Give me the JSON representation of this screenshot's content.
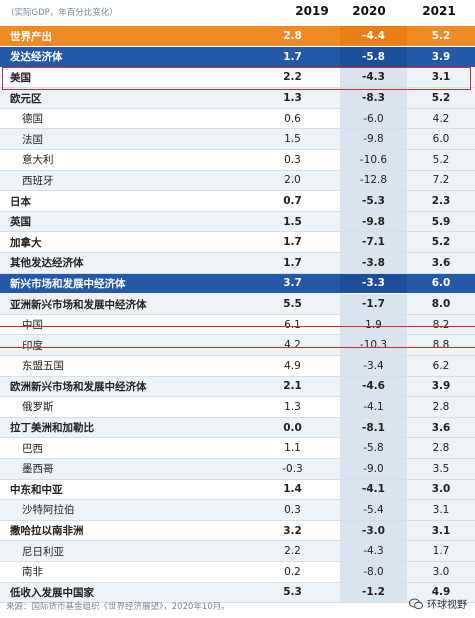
{
  "header": {
    "unit": "（实际GDP，年百分比变化）",
    "years": [
      "2019",
      "2020",
      "2021"
    ]
  },
  "rows": [
    {
      "label": "世界产出",
      "v": [
        "2.8",
        "-4.4",
        "5.2"
      ],
      "style": "world"
    },
    {
      "label": "发达经济体",
      "v": [
        "1.7",
        "-5.8",
        "3.9"
      ],
      "style": "adv"
    },
    {
      "label": "美国",
      "v": [
        "2.2",
        "-4.3",
        "3.1"
      ],
      "style": "top"
    },
    {
      "label": "欧元区",
      "v": [
        "1.3",
        "-8.3",
        "5.2"
      ],
      "style": "top"
    },
    {
      "label": "德国",
      "v": [
        "0.6",
        "-6.0",
        "4.2"
      ],
      "style": "sub"
    },
    {
      "label": "法国",
      "v": [
        "1.5",
        "-9.8",
        "6.0"
      ],
      "style": "sub"
    },
    {
      "label": "意大利",
      "v": [
        "0.3",
        "-10.6",
        "5.2"
      ],
      "style": "sub"
    },
    {
      "label": "西班牙",
      "v": [
        "2.0",
        "-12.8",
        "7.2"
      ],
      "style": "sub"
    },
    {
      "label": "日本",
      "v": [
        "0.7",
        "-5.3",
        "2.3"
      ],
      "style": "top"
    },
    {
      "label": "英国",
      "v": [
        "1.5",
        "-9.8",
        "5.9"
      ],
      "style": "top"
    },
    {
      "label": "加拿大",
      "v": [
        "1.7",
        "-7.1",
        "5.2"
      ],
      "style": "top"
    },
    {
      "label": "其他发达经济体",
      "v": [
        "1.7",
        "-3.8",
        "3.6"
      ],
      "style": "top"
    },
    {
      "label": "新兴市场和发展中经济体",
      "v": [
        "3.7",
        "-3.3",
        "6.0"
      ],
      "style": "adv"
    },
    {
      "label": "亚洲新兴市场和发展中经济体",
      "v": [
        "5.5",
        "-1.7",
        "8.0"
      ],
      "style": "top"
    },
    {
      "label": "中国",
      "v": [
        "6.1",
        "1.9",
        "8.2"
      ],
      "style": "sub"
    },
    {
      "label": "印度",
      "v": [
        "4.2",
        "-10.3",
        "8.8"
      ],
      "style": "sub"
    },
    {
      "label": "东盟五国",
      "v": [
        "4.9",
        "-3.4",
        "6.2"
      ],
      "style": "sub"
    },
    {
      "label": "欧洲新兴市场和发展中经济体",
      "v": [
        "2.1",
        "-4.6",
        "3.9"
      ],
      "style": "top"
    },
    {
      "label": "俄罗斯",
      "v": [
        "1.3",
        "-4.1",
        "2.8"
      ],
      "style": "sub"
    },
    {
      "label": "拉丁美洲和加勒比",
      "v": [
        "0.0",
        "-8.1",
        "3.6"
      ],
      "style": "top"
    },
    {
      "label": "巴西",
      "v": [
        "1.1",
        "-5.8",
        "2.8"
      ],
      "style": "sub"
    },
    {
      "label": "墨西哥",
      "v": [
        "-0.3",
        "-9.0",
        "3.5"
      ],
      "style": "sub"
    },
    {
      "label": "中东和中亚",
      "v": [
        "1.4",
        "-4.1",
        "3.0"
      ],
      "style": "top"
    },
    {
      "label": "沙特阿拉伯",
      "v": [
        "0.3",
        "-5.4",
        "3.1"
      ],
      "style": "sub"
    },
    {
      "label": "撒哈拉以南非洲",
      "v": [
        "3.2",
        "-3.0",
        "3.1"
      ],
      "style": "top"
    },
    {
      "label": "尼日利亚",
      "v": [
        "2.2",
        "-4.3",
        "1.7"
      ],
      "style": "sub"
    },
    {
      "label": "南非",
      "v": [
        "0.2",
        "-8.0",
        "3.0"
      ],
      "style": "sub"
    },
    {
      "label": "低收入发展中国家",
      "v": [
        "5.3",
        "-1.2",
        "4.9"
      ],
      "style": "top"
    }
  ],
  "footer": "来源：国际货币基金组织《世界经济展望》，2020年10月。",
  "brand": "环球视野"
}
